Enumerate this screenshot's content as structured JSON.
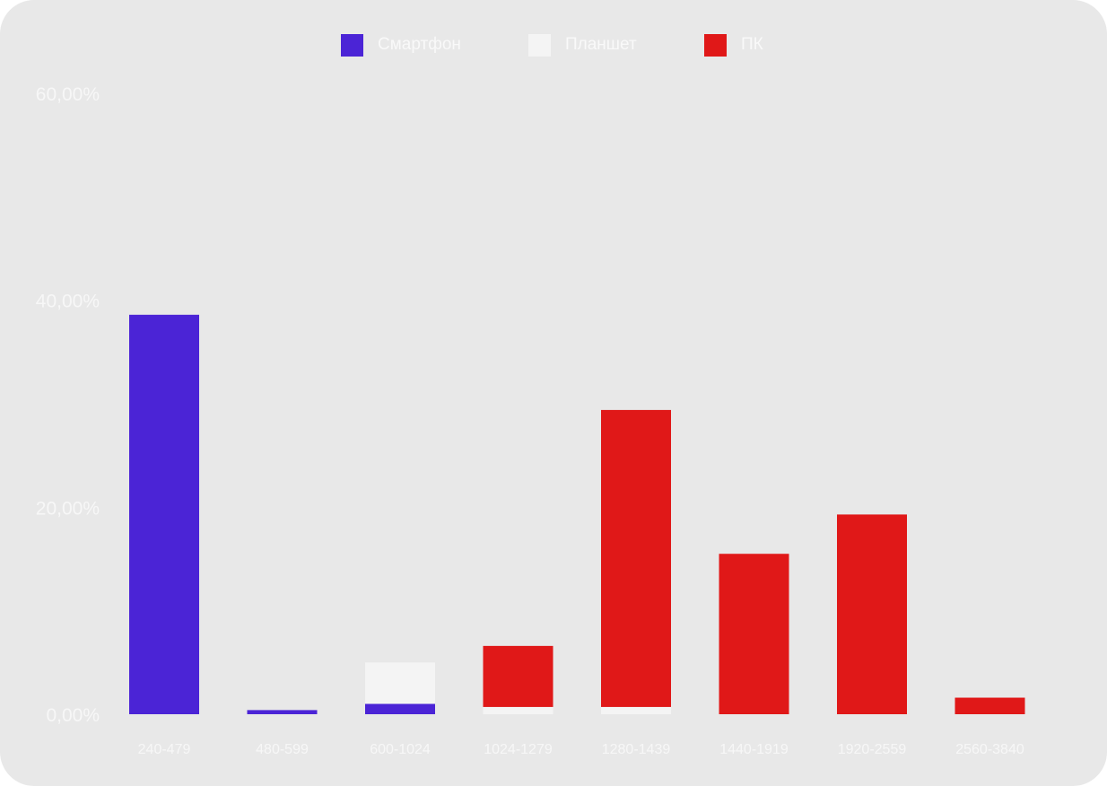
{
  "chart_data": {
    "type": "bar",
    "stacked": true,
    "categories": [
      "240-479",
      "480-599",
      "600-1024",
      "1024-1279",
      "1280-1439",
      "1440-1919",
      "1920-2559",
      "2560-3840"
    ],
    "series": [
      {
        "name": "Смартфон",
        "color": "#4b24d6",
        "values": [
          38.6,
          0.4,
          1.0,
          0.0,
          0.0,
          0.0,
          0.0,
          0.0
        ]
      },
      {
        "name": "Планшет",
        "color": "#f4f4f4",
        "values": [
          0.0,
          0.0,
          4.0,
          0.7,
          0.7,
          0.0,
          0.0,
          0.0
        ]
      },
      {
        "name": "ПК",
        "color": "#e01818",
        "values": [
          0.0,
          0.0,
          0.0,
          5.9,
          28.7,
          15.5,
          19.3,
          1.6
        ]
      }
    ],
    "yticks": [
      "0,00%",
      "20,00%",
      "40,00%",
      "60,00%"
    ],
    "ylim": [
      0,
      60
    ],
    "grid": false,
    "legend_position": "top"
  }
}
